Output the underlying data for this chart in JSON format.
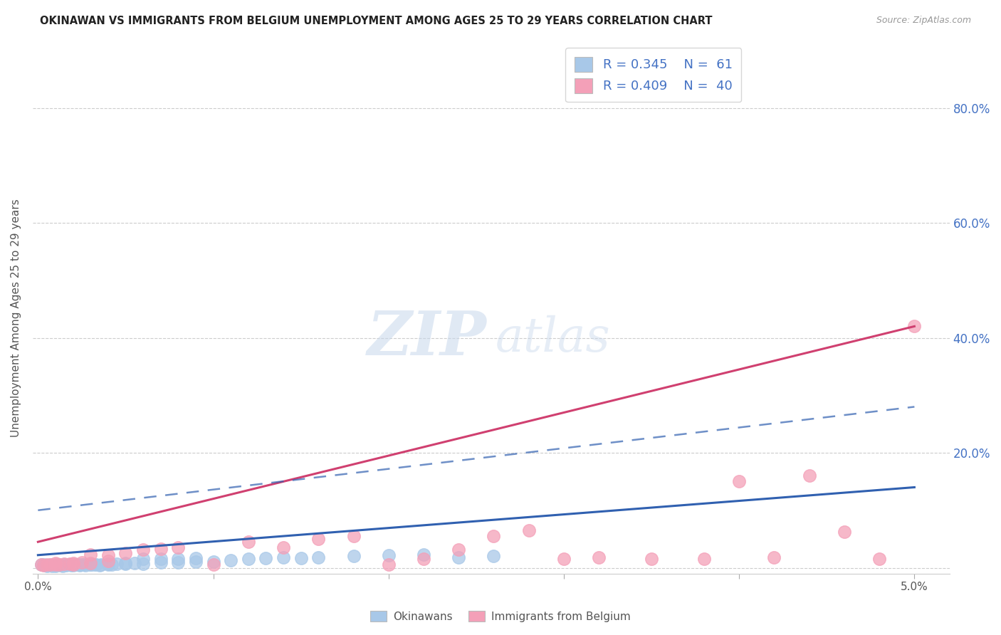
{
  "title": "OKINAWAN VS IMMIGRANTS FROM BELGIUM UNEMPLOYMENT AMONG AGES 25 TO 29 YEARS CORRELATION CHART",
  "source": "Source: ZipAtlas.com",
  "ylabel": "Unemployment Among Ages 25 to 29 years",
  "x_lim": [
    -0.0003,
    0.052
  ],
  "y_lim": [
    -0.01,
    0.88
  ],
  "color_okinawan": "#a8c8e8",
  "color_belgium": "#f4a0b8",
  "trendline_okinawan_color": "#3060b0",
  "trendline_belgium_color": "#d04070",
  "watermark_zip": "ZIP",
  "watermark_atlas": "atlas",
  "okinawan_x": [
    0.0002,
    0.0003,
    0.0004,
    0.0005,
    0.0006,
    0.0007,
    0.0008,
    0.0009,
    0.001,
    0.001,
    0.001,
    0.0012,
    0.0013,
    0.0014,
    0.0015,
    0.0016,
    0.0017,
    0.0018,
    0.0019,
    0.002,
    0.002,
    0.002,
    0.0022,
    0.0023,
    0.0024,
    0.0025,
    0.0026,
    0.0027,
    0.003,
    0.003,
    0.0032,
    0.0033,
    0.0035,
    0.0036,
    0.004,
    0.004,
    0.0042,
    0.0045,
    0.005,
    0.005,
    0.0055,
    0.006,
    0.006,
    0.007,
    0.007,
    0.008,
    0.008,
    0.009,
    0.009,
    0.01,
    0.011,
    0.012,
    0.013,
    0.014,
    0.015,
    0.016,
    0.018,
    0.02,
    0.022,
    0.024,
    0.026
  ],
  "okinawan_y": [
    0.005,
    0.005,
    0.004,
    0.003,
    0.004,
    0.005,
    0.003,
    0.004,
    0.003,
    0.004,
    0.006,
    0.005,
    0.004,
    0.003,
    0.005,
    0.004,
    0.005,
    0.006,
    0.004,
    0.004,
    0.005,
    0.006,
    0.005,
    0.005,
    0.004,
    0.006,
    0.005,
    0.004,
    0.005,
    0.006,
    0.005,
    0.006,
    0.004,
    0.005,
    0.006,
    0.007,
    0.005,
    0.007,
    0.007,
    0.008,
    0.008,
    0.007,
    0.016,
    0.009,
    0.015,
    0.009,
    0.016,
    0.01,
    0.017,
    0.011,
    0.013,
    0.016,
    0.017,
    0.018,
    0.017,
    0.018,
    0.021,
    0.022,
    0.023,
    0.018,
    0.02
  ],
  "belgium_x": [
    0.0002,
    0.0003,
    0.0005,
    0.0007,
    0.001,
    0.001,
    0.0012,
    0.0015,
    0.0018,
    0.002,
    0.002,
    0.0025,
    0.003,
    0.003,
    0.004,
    0.004,
    0.005,
    0.006,
    0.007,
    0.008,
    0.01,
    0.012,
    0.014,
    0.016,
    0.018,
    0.02,
    0.022,
    0.024,
    0.026,
    0.028,
    0.03,
    0.032,
    0.035,
    0.038,
    0.04,
    0.042,
    0.044,
    0.046,
    0.048,
    0.05
  ],
  "belgium_y": [
    0.005,
    0.004,
    0.005,
    0.006,
    0.006,
    0.008,
    0.005,
    0.007,
    0.007,
    0.006,
    0.008,
    0.009,
    0.008,
    0.023,
    0.012,
    0.022,
    0.026,
    0.031,
    0.033,
    0.035,
    0.005,
    0.045,
    0.035,
    0.05,
    0.055,
    0.005,
    0.015,
    0.032,
    0.055,
    0.065,
    0.015,
    0.018,
    0.015,
    0.016,
    0.15,
    0.018,
    0.16,
    0.062,
    0.015,
    0.42
  ],
  "ok_trend_x": [
    0.0,
    0.05
  ],
  "ok_trend_y": [
    0.025,
    0.145
  ],
  "bel_trend_x": [
    0.0,
    0.05
  ],
  "bel_trend_y": [
    0.045,
    0.425
  ]
}
